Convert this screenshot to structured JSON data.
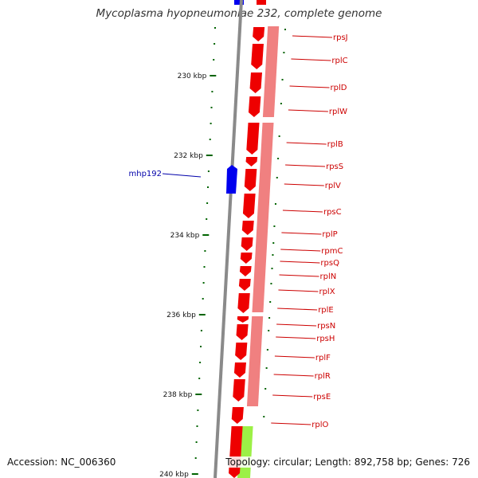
{
  "title": "Mycoplasma hyopneumoniae 232, complete genome",
  "accession": "Accession: NC_006360",
  "topology": "Topology: circular; Length: 892,758 bp; Genes: 726",
  "colors": {
    "forward_gene": "#0000ee",
    "reverse_cds": "#ee0000",
    "reverse_lane": "#f08080",
    "other_feature": "#9cf046",
    "backbone": "#8a8a8a",
    "tick": "#006400",
    "label_blue": "#0000aa",
    "label_red": "#cc0000"
  },
  "scale_labels": [
    "230 kbp",
    "232 kbp",
    "234 kbp",
    "236 kbp",
    "238 kbp",
    "240 kbp"
  ],
  "forward_genes": [
    "mhp192"
  ],
  "reverse_genes": [
    "rpsJ",
    "rplC",
    "rplD",
    "rplW",
    "rplB",
    "rpsS",
    "rplV",
    "rpsC",
    "rplP",
    "rpmC",
    "rpsQ",
    "rplN",
    "rplX",
    "rplE",
    "rpsN",
    "rpsH",
    "rplF",
    "rplR",
    "rpsE",
    "rplO"
  ]
}
